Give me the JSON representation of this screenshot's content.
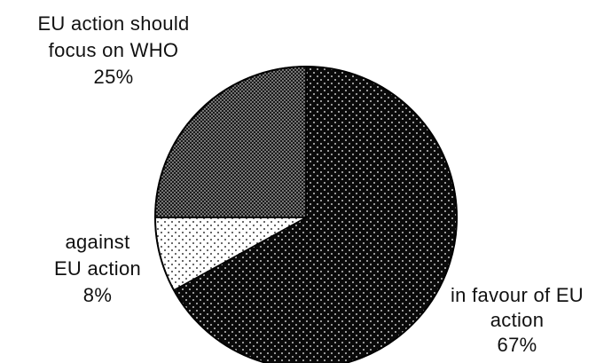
{
  "chart_data": {
    "type": "pie",
    "slices": [
      {
        "label_lines": [
          "in favour of EU",
          "action"
        ],
        "percent_label": "67%",
        "value": 67,
        "pattern": "dots-dark"
      },
      {
        "label_lines": [
          "against",
          "EU action"
        ],
        "percent_label": "8%",
        "value": 8,
        "pattern": "dots-light"
      },
      {
        "label_lines": [
          "EU action should",
          "focus on WHO"
        ],
        "percent_label": "25%",
        "value": 25,
        "pattern": "crosshatch-dark"
      }
    ],
    "start_angle_deg": 0,
    "direction": "clockwise",
    "colors": {
      "dark_fill": "#0a0a0a",
      "light_fill": "#ffffff",
      "dot_on_dark": "#ffffff",
      "dot_on_light": "#000000"
    }
  }
}
